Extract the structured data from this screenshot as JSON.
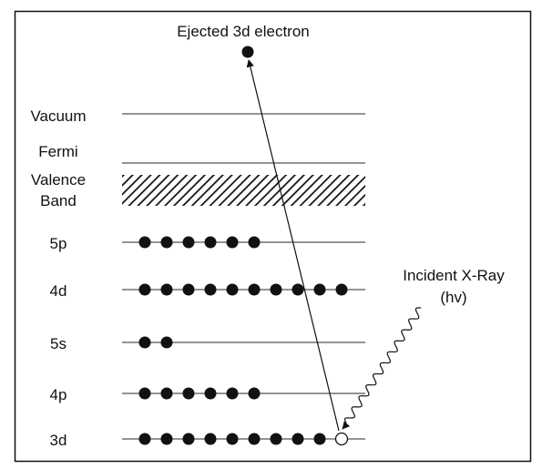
{
  "title": "Ejected 3d electron",
  "incident": {
    "label_line1": "Incident X-Ray",
    "label_line2": "(hv)"
  },
  "upper_levels": [
    {
      "name": "vacuum",
      "label_lines": [
        "Vacuum"
      ]
    },
    {
      "name": "fermi",
      "label_lines": [
        "Fermi"
      ]
    },
    {
      "name": "valence-band",
      "label_lines": [
        "Valence",
        "Band"
      ],
      "hatched": true
    }
  ],
  "levels": [
    {
      "name": "5p",
      "label": "5p",
      "electrons": 6,
      "hole": false
    },
    {
      "name": "4d",
      "label": "4d",
      "electrons": 10,
      "hole": false
    },
    {
      "name": "5s",
      "label": "5s",
      "electrons": 2,
      "hole": false
    },
    {
      "name": "4p",
      "label": "4p",
      "electrons": 6,
      "hole": false
    },
    {
      "name": "3d",
      "label": "3d",
      "electrons": 9,
      "hole": true
    }
  ]
}
